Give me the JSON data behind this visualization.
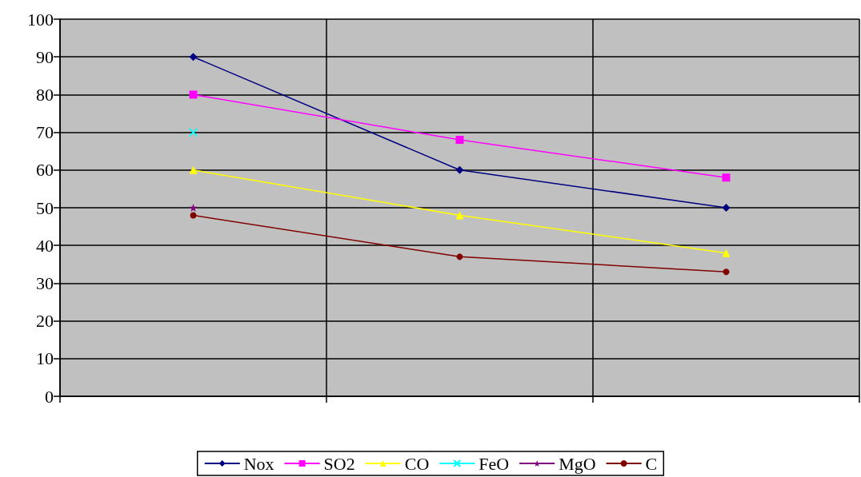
{
  "chart_data": {
    "type": "line",
    "categories": [
      null,
      null,
      null
    ],
    "series": [
      {
        "name": "Nox",
        "color": "#000080",
        "marker": "diamond",
        "values": [
          90,
          60,
          50
        ]
      },
      {
        "name": "SO2",
        "color": "#ff00ff",
        "marker": "square",
        "values": [
          80,
          68,
          58
        ]
      },
      {
        "name": "CO",
        "color": "#ffff00",
        "marker": "triangle",
        "values": [
          60,
          48,
          38
        ]
      },
      {
        "name": "FeO",
        "color": "#00ffff",
        "marker": "cross",
        "values": [
          70,
          null,
          null
        ]
      },
      {
        "name": "MgO",
        "color": "#800080",
        "marker": "star",
        "values": [
          50,
          null,
          null
        ]
      },
      {
        "name": "C",
        "color": "#800000",
        "marker": "circle",
        "values": [
          48,
          37,
          33
        ]
      }
    ],
    "ylim": [
      0,
      100
    ],
    "yticks": [
      0,
      10,
      20,
      30,
      40,
      50,
      60,
      70,
      80,
      90,
      100
    ],
    "grid": true,
    "legend": "bottom"
  }
}
